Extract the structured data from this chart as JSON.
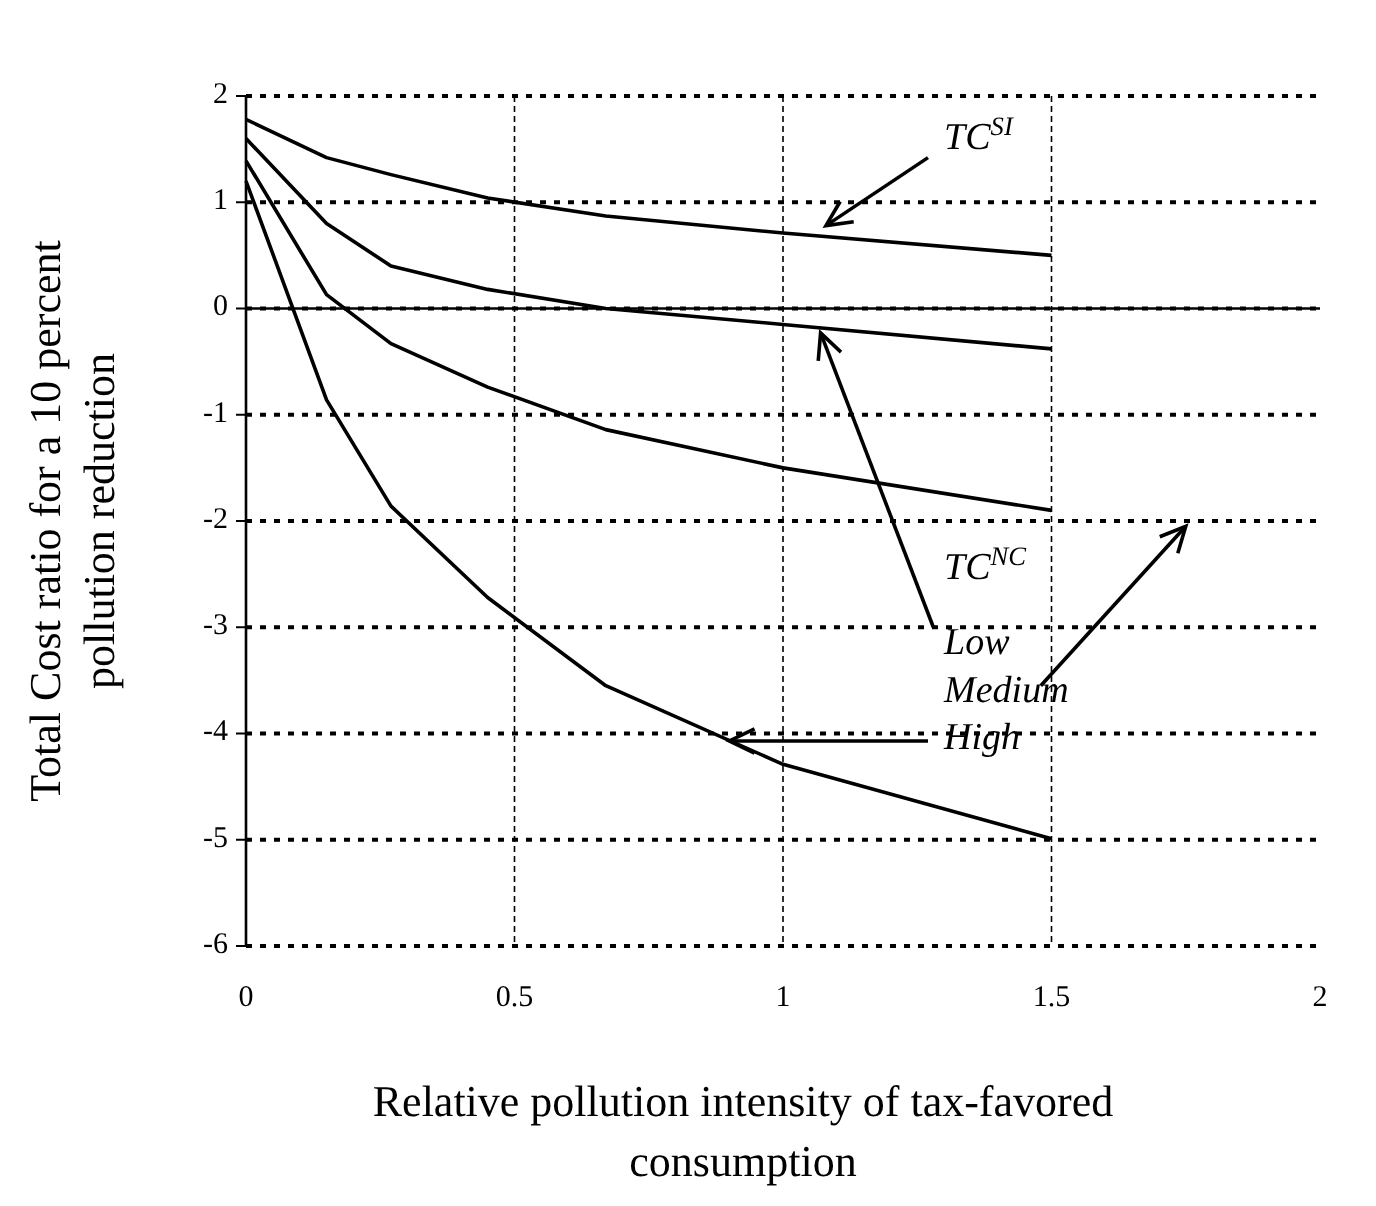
{
  "chart_data": {
    "type": "line",
    "xlabel": "Relative pollution intensity of tax-favored consumption",
    "ylabel": "Total Cost ratio for a 10 percent pollution reduction",
    "x": [
      0,
      0.15,
      0.27,
      0.45,
      0.67,
      1,
      1.5
    ],
    "series": [
      {
        "color": "#000000",
        "values": [
          1.78,
          1.42,
          1.26,
          1.04,
          0.87,
          0.71,
          0.5
        ]
      },
      {
        "color": "#000000",
        "values": [
          1.6,
          0.8,
          0.4,
          0.18,
          0,
          -0.15,
          -0.38
        ]
      },
      {
        "color": "#000000",
        "values": [
          1.39,
          0.13,
          -0.33,
          -0.74,
          -1.14,
          -1.5,
          -1.9
        ]
      },
      {
        "color": "#000000",
        "values": [
          1.2,
          -0.86,
          -1.86,
          -2.72,
          -3.55,
          -4.29,
          -4.99
        ]
      }
    ],
    "xlim": [
      0,
      2
    ],
    "xticks": [
      0,
      0.5,
      1,
      1.5,
      2
    ],
    "ylim": [
      -6,
      2
    ],
    "yticks": [
      -6,
      -5,
      -4,
      -3,
      -2,
      -1,
      0,
      1,
      2
    ],
    "grid": true,
    "marker": "none",
    "line_style": "solid",
    "ref_lines": [
      {
        "axis": "y",
        "value": 0,
        "line_style": "solid"
      }
    ],
    "annotations": [
      {
        "text": "TC$^{SI}$",
        "x": 1.08,
        "y": 0.78
      },
      "TC$^{NC}$",
      {
        "text": "Low",
        "x": 1.07,
        "y": -0.23
      },
      "Medium",
      {
        "text": "High",
        "x": 0.9,
        "y": -4.07
      }
    ]
  }
}
